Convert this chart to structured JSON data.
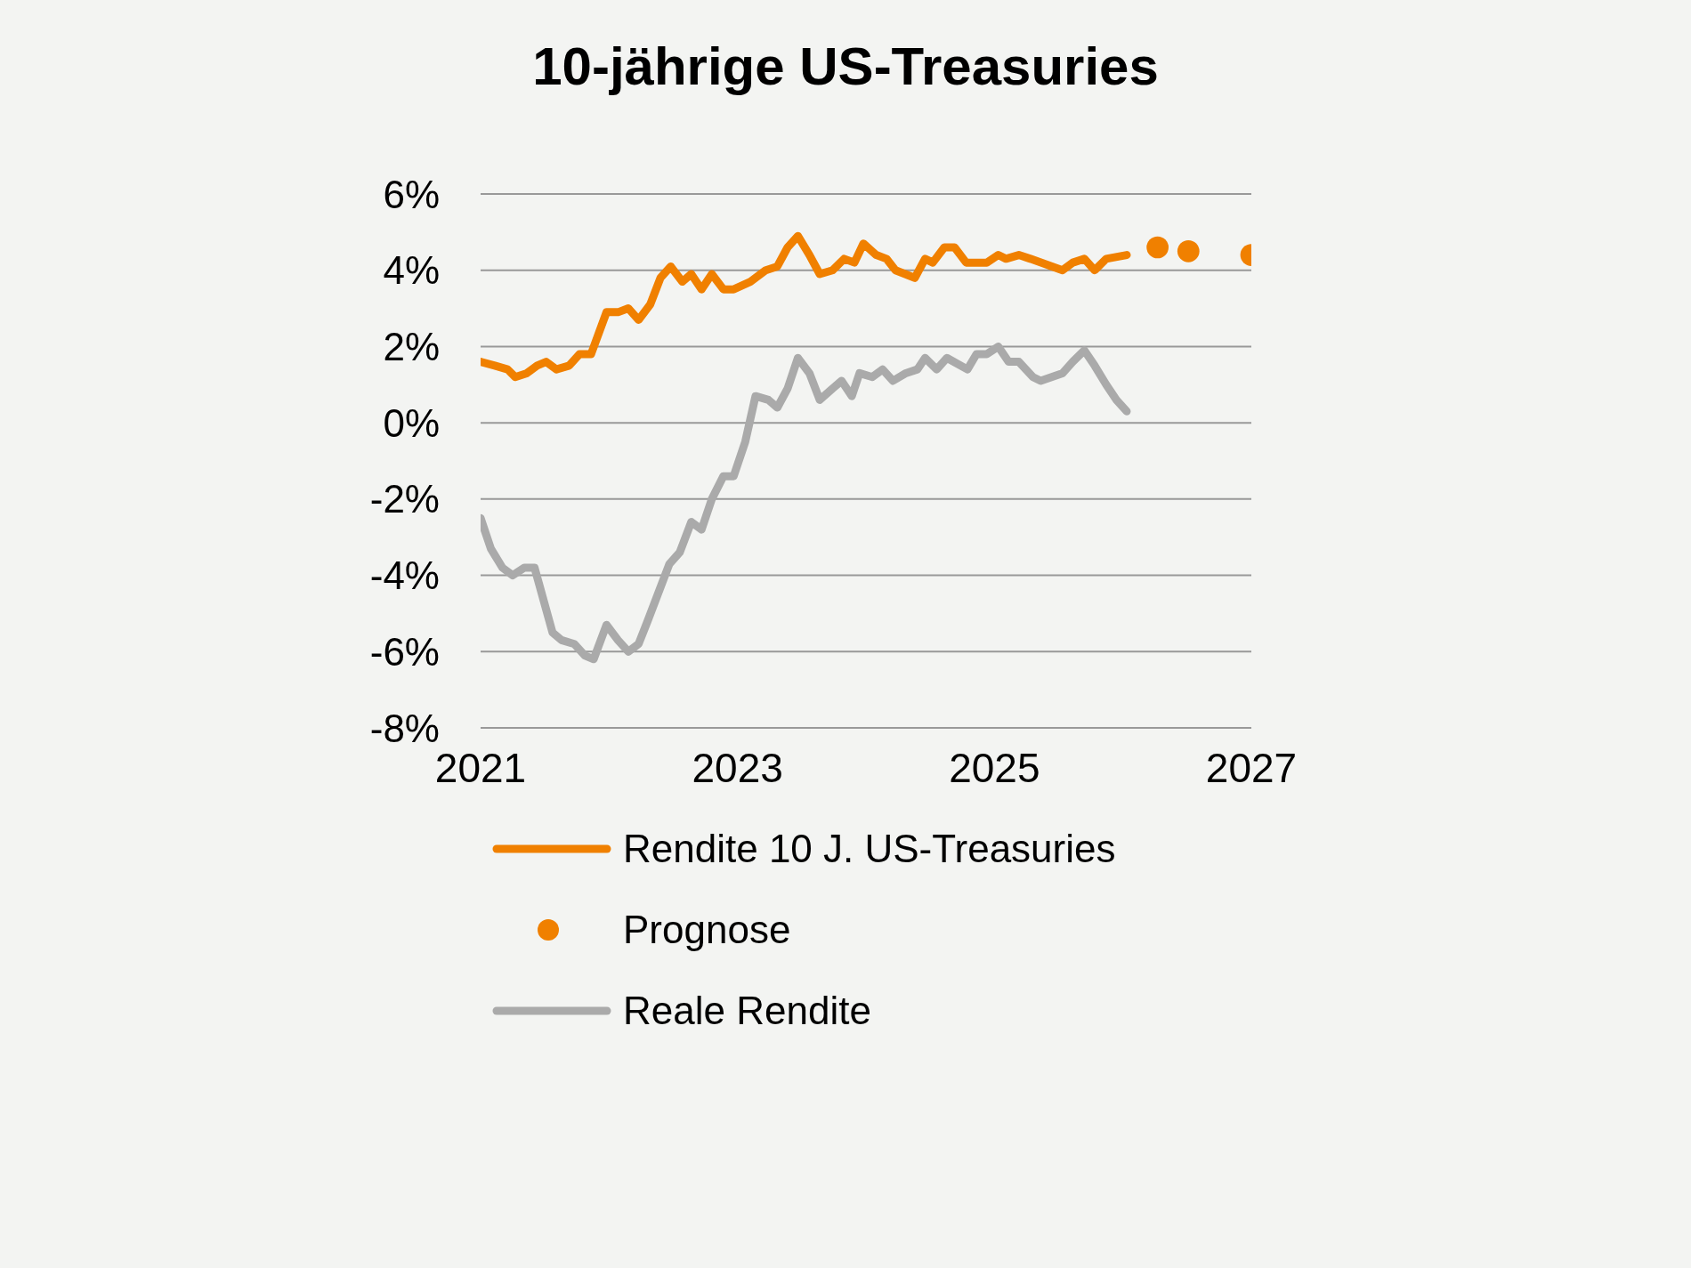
{
  "chart_data": {
    "type": "line",
    "title": "10-jährige US-Treasuries",
    "xlim": [
      2021,
      2027
    ],
    "xticks": [
      2021,
      2023,
      2025,
      2027
    ],
    "ylim": [
      -8,
      6
    ],
    "yticks": [
      {
        "value": -8,
        "label": "-8%"
      },
      {
        "value": -6,
        "label": "-6%"
      },
      {
        "value": -4,
        "label": "-4%"
      },
      {
        "value": -2,
        "label": "-2%"
      },
      {
        "value": 0,
        "label": "0%"
      },
      {
        "value": 2,
        "label": "2%"
      },
      {
        "value": 4,
        "label": "4%"
      },
      {
        "value": 6,
        "label": "6%"
      }
    ],
    "grid": "y",
    "legend": "bottom",
    "line_style": "solid",
    "series": [
      {
        "name": "Rendite 10 J. US-Treasuries",
        "color": "#f08000",
        "x": [
          2021.0,
          2021.11,
          2021.21,
          2021.27,
          2021.36,
          2021.44,
          2021.51,
          2021.59,
          2021.69,
          2021.77,
          2021.86,
          2021.98,
          2022.07,
          2022.15,
          2022.23,
          2022.32,
          2022.4,
          2022.48,
          2022.57,
          2022.64,
          2022.72,
          2022.8,
          2022.89,
          2022.97,
          2023.1,
          2023.22,
          2023.31,
          2023.39,
          2023.47,
          2023.56,
          2023.64,
          2023.74,
          2023.83,
          2023.91,
          2023.98,
          2024.08,
          2024.16,
          2024.23,
          2024.38,
          2024.46,
          2024.52,
          2024.61,
          2024.69,
          2024.78,
          2024.86,
          2024.94,
          2025.03,
          2025.09,
          2025.19,
          2025.28,
          2025.53,
          2025.61,
          2025.7,
          2025.78,
          2025.87,
          2026.03
        ],
        "values": [
          1.6,
          1.5,
          1.4,
          1.2,
          1.3,
          1.5,
          1.6,
          1.4,
          1.5,
          1.8,
          1.8,
          2.9,
          2.9,
          3.0,
          2.7,
          3.1,
          3.8,
          4.1,
          3.7,
          3.9,
          3.5,
          3.9,
          3.5,
          3.5,
          3.7,
          4.0,
          4.1,
          4.6,
          4.9,
          4.4,
          3.9,
          4.0,
          4.3,
          4.2,
          4.7,
          4.4,
          4.3,
          4.0,
          3.8,
          4.3,
          4.2,
          4.6,
          4.6,
          4.2,
          4.2,
          4.2,
          4.4,
          4.3,
          4.4,
          4.3,
          4.0,
          4.2,
          4.3,
          4.0,
          4.3,
          4.4
        ]
      },
      {
        "name": "Prognose",
        "type": "scatter",
        "marker": "circle",
        "color": "#f08000",
        "x": [
          2026.27,
          2026.51,
          2027.0
        ],
        "values": [
          4.6,
          4.5,
          4.4
        ]
      },
      {
        "name": "Reale Rendite",
        "color": "#aaaaaa",
        "x": [
          2021.0,
          2021.08,
          2021.17,
          2021.25,
          2021.34,
          2021.42,
          2021.56,
          2021.63,
          2021.73,
          2021.81,
          2021.88,
          2021.98,
          2022.07,
          2022.15,
          2022.23,
          2022.3,
          2022.47,
          2022.55,
          2022.64,
          2022.72,
          2022.8,
          2022.89,
          2022.97,
          2023.06,
          2023.14,
          2023.24,
          2023.31,
          2023.39,
          2023.47,
          2023.56,
          2023.64,
          2023.74,
          2023.81,
          2023.89,
          2023.95,
          2024.05,
          2024.13,
          2024.21,
          2024.31,
          2024.4,
          2024.46,
          2024.55,
          2024.63,
          2024.79,
          2024.86,
          2024.94,
          2025.03,
          2025.11,
          2025.19,
          2025.3,
          2025.36,
          2025.53,
          2025.61,
          2025.7,
          2025.78,
          2025.87,
          2025.95,
          2026.03
        ],
        "values": [
          -2.5,
          -3.3,
          -3.8,
          -4.0,
          -3.8,
          -3.8,
          -5.5,
          -5.7,
          -5.8,
          -6.1,
          -6.2,
          -5.3,
          -5.7,
          -6.0,
          -5.8,
          -5.2,
          -3.7,
          -3.4,
          -2.6,
          -2.8,
          -2.0,
          -1.4,
          -1.4,
          -0.5,
          0.7,
          0.6,
          0.4,
          0.9,
          1.7,
          1.3,
          0.6,
          0.9,
          1.1,
          0.7,
          1.3,
          1.2,
          1.4,
          1.1,
          1.3,
          1.4,
          1.7,
          1.4,
          1.7,
          1.4,
          1.8,
          1.8,
          2.0,
          1.6,
          1.6,
          1.2,
          1.1,
          1.3,
          1.6,
          1.9,
          1.5,
          1.0,
          0.6,
          0.3
        ]
      }
    ]
  }
}
